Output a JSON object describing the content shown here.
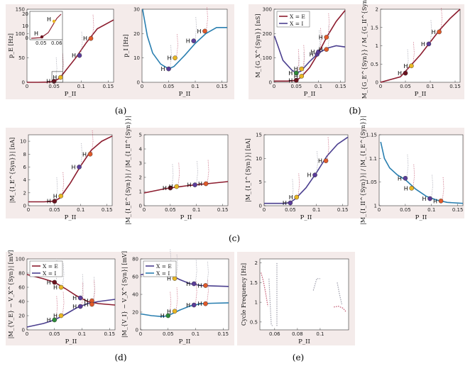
{
  "figure": {
    "captions": [
      "(a)",
      "(b)",
      "(c)",
      "(d)",
      "(e)"
    ]
  },
  "colors": {
    "background": "#f4ebea",
    "red": "#8c1c2e",
    "blue": "#2a7fb0",
    "purple": "#4b3f8f",
    "dot_dark": "#6b1420",
    "dot_green": "#2e8b3a",
    "dot_yellow": "#e8b624",
    "dot_purple": "#5b3d9a",
    "dot_orange": "#e05a2a",
    "unstable_red": "#c0506a",
    "unstable_blue": "#3a8ad0",
    "unstable_grey": "#9a9aa8"
  },
  "chart_data": [
    {
      "id": "a1",
      "type": "line",
      "ylabel": "p_E [Hz]",
      "xlabel": "P_II",
      "xlim": [
        0,
        0.16
      ],
      "ylim": [
        0,
        150
      ],
      "xticks": [
        "0",
        "0.05",
        "0.1",
        "0.15"
      ],
      "yticks": [
        "0",
        "50",
        "100",
        "150"
      ],
      "series": [
        {
          "name": "p_E",
          "color": "red",
          "x": [
            0,
            0.02,
            0.04,
            0.05,
            0.06,
            0.07,
            0.09,
            0.11,
            0.13,
            0.16
          ],
          "y": [
            0,
            0,
            0.5,
            2,
            8,
            22,
            50,
            82,
            110,
            128
          ]
        }
      ],
      "hopf": [
        {
          "x": 0.05,
          "y": 2,
          "c": "dot_dark",
          "label": "H"
        },
        {
          "x": 0.062,
          "y": 10,
          "c": "dot_yellow",
          "label": "H"
        },
        {
          "x": 0.097,
          "y": 55,
          "c": "dot_purple",
          "label": "H"
        },
        {
          "x": 0.118,
          "y": 90,
          "c": "dot_orange",
          "label": "H"
        }
      ],
      "inset": {
        "xticks": [
          "0.05",
          "0.06"
        ],
        "yticks": [
          "0",
          "10",
          "20"
        ],
        "labels": [
          "H",
          "H"
        ]
      }
    },
    {
      "id": "a2",
      "type": "line",
      "ylabel": "p_I [Hz]",
      "xlabel": "P_II",
      "xlim": [
        0,
        0.16
      ],
      "ylim": [
        0,
        30
      ],
      "xticks": [
        "0",
        "0.05",
        "0.1",
        "0.15"
      ],
      "yticks": [
        "0",
        "10",
        "20",
        "30"
      ],
      "series": [
        {
          "name": "p_I",
          "color": "blue",
          "x": [
            0.001,
            0.01,
            0.02,
            0.035,
            0.05,
            0.06,
            0.08,
            0.1,
            0.12,
            0.14,
            0.16
          ],
          "y": [
            30,
            19,
            12,
            7.5,
            5.5,
            6.5,
            11,
            16,
            20,
            22.5,
            22.5
          ]
        }
      ],
      "hopf": [
        {
          "x": 0.05,
          "y": 5.5,
          "c": "dot_purple",
          "label": "H"
        },
        {
          "x": 0.062,
          "y": 10,
          "c": "dot_yellow",
          "label": "H"
        },
        {
          "x": 0.097,
          "y": 17,
          "c": "dot_purple",
          "label": "H"
        },
        {
          "x": 0.118,
          "y": 21,
          "c": "dot_orange",
          "label": "H"
        }
      ]
    },
    {
      "id": "b1",
      "type": "line",
      "ylabel": "M_{G_X^{Syn}} [nS]",
      "xlabel": "P_II",
      "xlim": [
        0,
        0.16
      ],
      "ylim": [
        0,
        300
      ],
      "xticks": [
        "0",
        "0.05",
        "0.1",
        "0.15"
      ],
      "yticks": [
        "0",
        "100",
        "200",
        "300"
      ],
      "legend": [
        {
          "label": "X = E",
          "color": "red"
        },
        {
          "label": "X = I",
          "color": "purple"
        }
      ],
      "series": [
        {
          "name": "X = E",
          "color": "red",
          "x": [
            0,
            0.03,
            0.05,
            0.06,
            0.08,
            0.1,
            0.12,
            0.14,
            0.16
          ],
          "y": [
            5,
            5,
            8,
            20,
            60,
            120,
            190,
            250,
            295
          ]
        },
        {
          "name": "X = I",
          "color": "purple",
          "x": [
            0.001,
            0.02,
            0.04,
            0.05,
            0.06,
            0.08,
            0.1,
            0.12,
            0.14,
            0.16
          ],
          "y": [
            190,
            90,
            50,
            38,
            45,
            85,
            120,
            140,
            150,
            145
          ]
        }
      ],
      "hopf": [
        {
          "x": 0.05,
          "y": 8,
          "c": "dot_dark",
          "label": "H"
        },
        {
          "x": 0.05,
          "y": 38,
          "c": "dot_green",
          "label": "H"
        },
        {
          "x": 0.062,
          "y": 25,
          "c": "dot_yellow",
          "label": "H"
        },
        {
          "x": 0.062,
          "y": 55,
          "c": "dot_yellow",
          "label": "H"
        },
        {
          "x": 0.097,
          "y": 115,
          "c": "dot_purple",
          "label": "H"
        },
        {
          "x": 0.1,
          "y": 125,
          "c": "dot_purple",
          "label": "H"
        },
        {
          "x": 0.118,
          "y": 135,
          "c": "dot_orange",
          "label": "H"
        },
        {
          "x": 0.118,
          "y": 185,
          "c": "dot_orange",
          "label": "H"
        }
      ]
    },
    {
      "id": "b2",
      "type": "line",
      "ylabel": "M_{G_E^{Syn}} / M_{G_II^{Syn}}",
      "xlabel": "P_II",
      "xlim": [
        0,
        0.16
      ],
      "ylim": [
        0,
        2
      ],
      "xticks": [
        "0",
        "0.05",
        "0.1",
        "0.15"
      ],
      "yticks": [
        "0",
        "0.5",
        "1",
        "1.5",
        "2"
      ],
      "series": [
        {
          "name": "ratio",
          "color": "red",
          "x": [
            0,
            0.04,
            0.06,
            0.08,
            0.1,
            0.12,
            0.14,
            0.16
          ],
          "y": [
            0,
            0.15,
            0.45,
            0.75,
            1.1,
            1.45,
            1.75,
            2.0
          ]
        }
      ],
      "hopf": [
        {
          "x": 0.05,
          "y": 0.25,
          "c": "dot_dark",
          "label": "H"
        },
        {
          "x": 0.062,
          "y": 0.45,
          "c": "dot_yellow",
          "label": "H"
        },
        {
          "x": 0.097,
          "y": 1.05,
          "c": "dot_purple",
          "label": "H"
        },
        {
          "x": 0.118,
          "y": 1.38,
          "c": "dot_orange",
          "label": "H"
        }
      ]
    },
    {
      "id": "c1",
      "type": "line",
      "ylabel": "|M_{I_E^{Syn}}| [nA]",
      "xlabel": "P_II",
      "xlim": [
        0,
        0.16
      ],
      "ylim": [
        0,
        11
      ],
      "xticks": [
        "0",
        "0.05",
        "0.1",
        "0.15"
      ],
      "yticks": [
        "0",
        "2",
        "4",
        "6",
        "8",
        "10"
      ],
      "series": [
        {
          "name": "IE",
          "color": "red",
          "x": [
            0,
            0.03,
            0.05,
            0.06,
            0.08,
            0.1,
            0.12,
            0.14,
            0.16
          ],
          "y": [
            0.6,
            0.6,
            0.7,
            1.2,
            3.5,
            6.2,
            8.6,
            10,
            10.8
          ]
        }
      ],
      "hopf": [
        {
          "x": 0.05,
          "y": 0.7,
          "c": "dot_dark",
          "label": "H"
        },
        {
          "x": 0.062,
          "y": 1.5,
          "c": "dot_yellow",
          "label": "H"
        },
        {
          "x": 0.097,
          "y": 6.0,
          "c": "dot_purple",
          "label": "H"
        },
        {
          "x": 0.118,
          "y": 8.0,
          "c": "dot_orange",
          "label": "H"
        }
      ]
    },
    {
      "id": "c2",
      "type": "line",
      "ylabel": "|M_{I_E^{Syn}}| / |M_{I_II^{Syn}}|",
      "xlabel": "P_II",
      "xlim": [
        0,
        0.16
      ],
      "ylim": [
        0,
        5
      ],
      "xticks": [
        "0",
        "0.05",
        "0.1",
        "0.15"
      ],
      "yticks": [
        "0",
        "1",
        "2",
        "3",
        "4",
        "5"
      ],
      "series": [
        {
          "name": "ratio",
          "color": "red",
          "x": [
            0,
            0.04,
            0.08,
            0.12,
            0.16
          ],
          "y": [
            0.9,
            1.2,
            1.4,
            1.55,
            1.7
          ]
        }
      ],
      "hopf": [
        {
          "x": 0.05,
          "y": 1.25,
          "c": "dot_dark",
          "label": "H"
        },
        {
          "x": 0.062,
          "y": 1.35,
          "c": "dot_yellow",
          "label": "H"
        },
        {
          "x": 0.097,
          "y": 1.47,
          "c": "dot_purple",
          "label": "H"
        },
        {
          "x": 0.118,
          "y": 1.55,
          "c": "dot_orange",
          "label": "H"
        }
      ]
    },
    {
      "id": "c3",
      "type": "line",
      "ylabel": "|M_{I_I^{Syn}}| [nA]",
      "xlabel": "P_II",
      "xlim": [
        0,
        0.16
      ],
      "ylim": [
        0,
        15
      ],
      "xticks": [
        "0",
        "0.05",
        "0.1",
        "0.15"
      ],
      "yticks": [
        "0",
        "5",
        "10",
        "15"
      ],
      "series": [
        {
          "name": "II",
          "color": "purple",
          "x": [
            0,
            0.04,
            0.05,
            0.06,
            0.08,
            0.1,
            0.12,
            0.14,
            0.16
          ],
          "y": [
            0.5,
            0.5,
            0.7,
            1.5,
            3.8,
            7,
            10.5,
            13,
            14.5
          ]
        }
      ],
      "hopf": [
        {
          "x": 0.05,
          "y": 0.6,
          "c": "dot_purple",
          "label": "H"
        },
        {
          "x": 0.062,
          "y": 1.8,
          "c": "dot_yellow",
          "label": "H"
        },
        {
          "x": 0.097,
          "y": 6.5,
          "c": "dot_purple",
          "label": "H"
        },
        {
          "x": 0.118,
          "y": 9.5,
          "c": "dot_orange",
          "label": "H"
        }
      ]
    },
    {
      "id": "c4",
      "type": "line",
      "ylabel": "|M_{I_II^{Syn}}| / |M_{I_E^{Syn}}|",
      "xlabel": "P_II",
      "xlim": [
        0,
        0.16
      ],
      "ylim": [
        1,
        1.15
      ],
      "xticks": [
        "0",
        "0.05",
        "0.1",
        "0.15"
      ],
      "yticks": [
        "1",
        "1.05",
        "1.1",
        "1.15"
      ],
      "series": [
        {
          "name": "ratio",
          "color": "blue",
          "x": [
            0.003,
            0.01,
            0.02,
            0.035,
            0.05,
            0.07,
            0.09,
            0.11,
            0.13,
            0.16
          ],
          "y": [
            1.135,
            1.1,
            1.08,
            1.065,
            1.055,
            1.035,
            1.02,
            1.012,
            1.007,
            1.005
          ]
        }
      ],
      "hopf": [
        {
          "x": 0.05,
          "y": 1.058,
          "c": "dot_purple",
          "label": "H"
        },
        {
          "x": 0.062,
          "y": 1.037,
          "c": "dot_yellow",
          "label": "H"
        },
        {
          "x": 0.097,
          "y": 1.015,
          "c": "dot_purple",
          "label": "H"
        },
        {
          "x": 0.118,
          "y": 1.01,
          "c": "dot_orange",
          "label": "H"
        }
      ]
    },
    {
      "id": "d1",
      "type": "line",
      "ylabel": "|M_{V_E} − V_X^{Syn}| [mV]",
      "xlabel": "P_II",
      "xlim": [
        0,
        0.16
      ],
      "ylim": [
        0,
        100
      ],
      "xticks": [
        "0",
        "0.05",
        "0.1",
        "0.15"
      ],
      "yticks": [
        "0",
        "20",
        "40",
        "60",
        "80",
        "100"
      ],
      "legend": [
        {
          "label": "X = E",
          "color": "red"
        },
        {
          "label": "X = I",
          "color": "purple"
        }
      ],
      "series": [
        {
          "name": "X = E",
          "color": "red",
          "x": [
            0,
            0.03,
            0.05,
            0.07,
            0.09,
            0.11,
            0.13,
            0.16
          ],
          "y": [
            78,
            72,
            67,
            58,
            48,
            40,
            37,
            35
          ]
        },
        {
          "name": "X = I",
          "color": "purple",
          "x": [
            0,
            0.03,
            0.05,
            0.07,
            0.09,
            0.11,
            0.13,
            0.16
          ],
          "y": [
            4,
            9,
            14,
            22,
            31,
            37,
            40,
            43
          ]
        }
      ],
      "hopf": [
        {
          "x": 0.05,
          "y": 67,
          "c": "dot_dark",
          "label": "H"
        },
        {
          "x": 0.05,
          "y": 14,
          "c": "dot_green",
          "label": "H"
        },
        {
          "x": 0.062,
          "y": 60,
          "c": "dot_yellow",
          "label": "H"
        },
        {
          "x": 0.062,
          "y": 20,
          "c": "dot_yellow",
          "label": "H"
        },
        {
          "x": 0.097,
          "y": 45,
          "c": "dot_purple",
          "label": "H"
        },
        {
          "x": 0.097,
          "y": 33,
          "c": "dot_purple",
          "label": "H"
        },
        {
          "x": 0.118,
          "y": 41,
          "c": "dot_orange",
          "label": "H"
        },
        {
          "x": 0.118,
          "y": 36,
          "c": "dot_orange",
          "label": "H"
        }
      ]
    },
    {
      "id": "d2",
      "type": "line",
      "ylabel": "|M_{V_I} − V_X^{Syn}| [mV]",
      "xlabel": "P_II",
      "xlim": [
        0,
        0.16
      ],
      "ylim": [
        0,
        80
      ],
      "xticks": [
        "0",
        "0.05",
        "0.1",
        "0.15"
      ],
      "yticks": [
        "0",
        "20",
        "40",
        "60",
        "80"
      ],
      "legend": [
        {
          "label": "X = E",
          "color": "purple"
        },
        {
          "label": "X = I",
          "color": "blue"
        }
      ],
      "series": [
        {
          "name": "X = E",
          "color": "purple",
          "x": [
            0,
            0.02,
            0.04,
            0.05,
            0.07,
            0.09,
            0.11,
            0.13,
            0.16
          ],
          "y": [
            62,
            65,
            66,
            64,
            57,
            52,
            50,
            49.5,
            49
          ]
        },
        {
          "name": "X = I",
          "color": "blue",
          "x": [
            0,
            0.02,
            0.04,
            0.05,
            0.07,
            0.09,
            0.11,
            0.13,
            0.16
          ],
          "y": [
            18,
            16,
            15,
            16,
            22,
            27,
            29.5,
            30,
            30.5
          ]
        }
      ],
      "hopf": [
        {
          "x": 0.05,
          "y": 64,
          "c": "dot_purple",
          "label": "H"
        },
        {
          "x": 0.05,
          "y": 16,
          "c": "dot_green",
          "label": "H"
        },
        {
          "x": 0.062,
          "y": 58,
          "c": "dot_yellow",
          "label": "H"
        },
        {
          "x": 0.062,
          "y": 21,
          "c": "dot_yellow",
          "label": "H"
        },
        {
          "x": 0.097,
          "y": 52,
          "c": "dot_purple",
          "label": "H"
        },
        {
          "x": 0.097,
          "y": 28,
          "c": "dot_purple",
          "label": "H"
        },
        {
          "x": 0.118,
          "y": 50,
          "c": "dot_orange",
          "label": "H"
        },
        {
          "x": 0.118,
          "y": 29.5,
          "c": "dot_orange",
          "label": "H"
        }
      ]
    },
    {
      "id": "e1",
      "type": "line",
      "ylabel": "Cycle Frequency [Hz]",
      "xlabel": "P_II",
      "xlim": [
        0.047,
        0.125
      ],
      "ylim": [
        0.3,
        2.1
      ],
      "xticks": [
        "0.06",
        "0.08",
        "0.1"
      ],
      "yticks": [
        "0.5",
        "1",
        "1.5",
        "2"
      ],
      "series": [
        {
          "name": "branch1",
          "color": "unstable_red",
          "dash": true,
          "x": [
            0.048,
            0.05,
            0.052,
            0.054
          ],
          "y": [
            1.75,
            1.55,
            1.25,
            0.9
          ]
        },
        {
          "name": "branch2",
          "color": "unstable_grey",
          "dash": true,
          "x": [
            0.055,
            0.056,
            0.057,
            0.058
          ],
          "y": [
            1.6,
            1.0,
            0.45,
            0.4
          ]
        },
        {
          "name": "branch3",
          "color": "unstable_grey",
          "dash": true,
          "x": [
            0.062,
            0.062,
            0.062
          ],
          "y": [
            0.4,
            1.2,
            2.0
          ]
        },
        {
          "name": "branch4",
          "color": "unstable_grey",
          "dash": true,
          "x": [
            0.094,
            0.097,
            0.1
          ],
          "y": [
            1.3,
            1.6,
            1.6
          ]
        },
        {
          "name": "branch5",
          "color": "unstable_red",
          "dash": true,
          "x": [
            0.112,
            0.116,
            0.12,
            0.123
          ],
          "y": [
            0.88,
            0.9,
            0.85,
            0.75
          ]
        },
        {
          "name": "branch6",
          "color": "unstable_grey",
          "dash": true,
          "x": [
            0.115,
            0.117,
            0.119
          ],
          "y": [
            1.5,
            1.2,
            0.95
          ]
        }
      ],
      "hopf": []
    }
  ]
}
